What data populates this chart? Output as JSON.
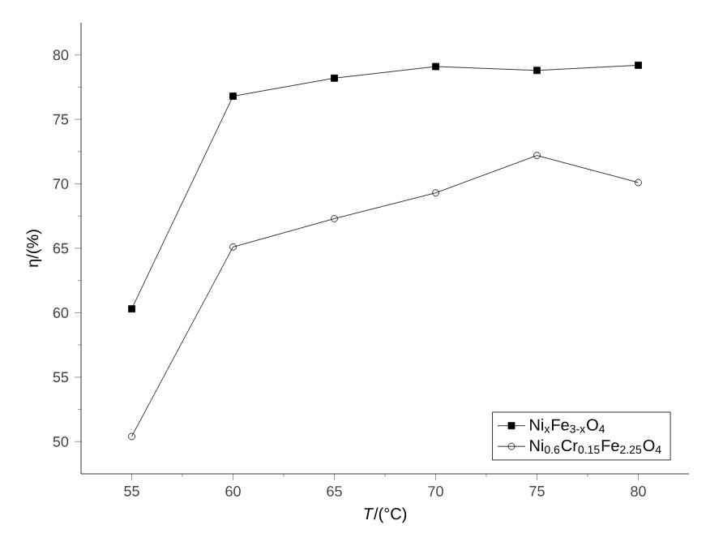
{
  "chart_data": {
    "type": "line",
    "xlabel": "*T*/(°C)",
    "ylabel": "η/(%)",
    "x": [
      55,
      60,
      65,
      70,
      75,
      80
    ],
    "series": [
      {
        "name": "Ni$_{x}$Fe$_{3-x}$O$_{4}$",
        "color": "#000000",
        "marker": "square",
        "values": [
          60.3,
          76.8,
          78.2,
          79.1,
          78.8,
          79.2
        ]
      },
      {
        "name": "Ni$_{0.6}$Cr$_{0.15}$Fe$_{2.25}$O$_{4}$",
        "color": "#000000",
        "marker": "circle",
        "values": [
          50.4,
          65.1,
          67.3,
          69.3,
          72.2,
          70.1
        ]
      }
    ],
    "xlim": [
      52.5,
      82.5
    ],
    "ylim": [
      47.5,
      82.5
    ],
    "xticks": [
      55,
      60,
      65,
      70,
      75,
      80
    ],
    "yticks": [
      50,
      55,
      60,
      65,
      70,
      75,
      80
    ],
    "legend": "bottom right",
    "grid": false,
    "line_style": "solid"
  }
}
